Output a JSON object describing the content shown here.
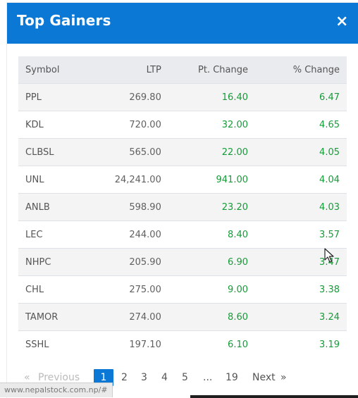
{
  "modal": {
    "title": "Top Gainers",
    "close_icon": "×"
  },
  "table": {
    "headers": {
      "symbol": "Symbol",
      "ltp": "LTP",
      "pt_change": "Pt. Change",
      "pct_change": "% Change"
    },
    "rows": [
      {
        "symbol": "PPL",
        "ltp": "269.80",
        "pt": "16.40",
        "pct": "6.47"
      },
      {
        "symbol": "KDL",
        "ltp": "720.00",
        "pt": "32.00",
        "pct": "4.65"
      },
      {
        "symbol": "CLBSL",
        "ltp": "565.00",
        "pt": "22.00",
        "pct": "4.05"
      },
      {
        "symbol": "UNL",
        "ltp": "24,241.00",
        "pt": "941.00",
        "pct": "4.04"
      },
      {
        "symbol": "ANLB",
        "ltp": "598.90",
        "pt": "23.20",
        "pct": "4.03"
      },
      {
        "symbol": "LEC",
        "ltp": "244.00",
        "pt": "8.40",
        "pct": "3.57"
      },
      {
        "symbol": "NHPC",
        "ltp": "205.90",
        "pt": "6.90",
        "pct": "3.47"
      },
      {
        "symbol": "CHL",
        "ltp": "275.00",
        "pt": "9.00",
        "pct": "3.38"
      },
      {
        "symbol": "TAMOR",
        "ltp": "274.00",
        "pt": "8.60",
        "pct": "3.24"
      },
      {
        "symbol": "SSHL",
        "ltp": "197.10",
        "pt": "6.10",
        "pct": "3.19"
      }
    ]
  },
  "pagination": {
    "prev_symbol": "«",
    "prev_label": "Previous",
    "pages": [
      "1",
      "2",
      "3",
      "4",
      "5"
    ],
    "ellipsis": "...",
    "last_page": "19",
    "next_label": "Next",
    "next_symbol": "»"
  },
  "status_url": "www.nepalstock.com.np/#",
  "colors": {
    "header_bg": "#0b78d6",
    "positive": "#159c38",
    "active_page": "#0b78d6"
  }
}
